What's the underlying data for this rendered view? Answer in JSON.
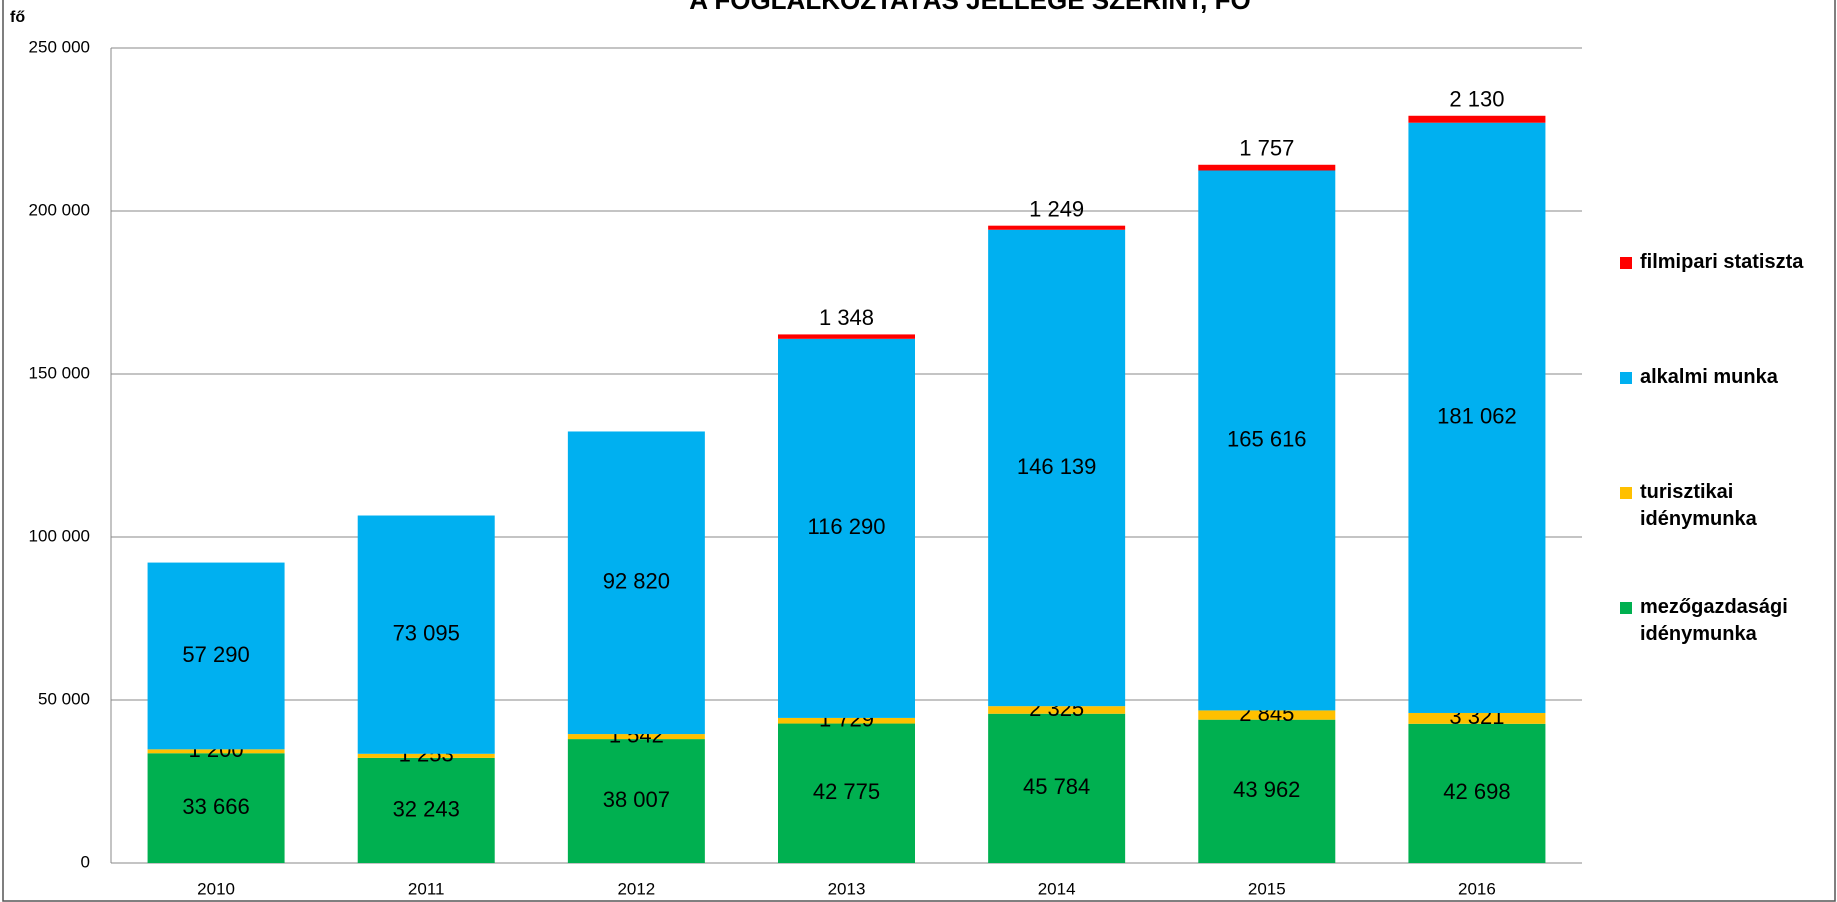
{
  "chart_data": {
    "type": "stacked_bar",
    "title": "A FOGLALKOZTATÁS JELLEGE SZERINT, FŐ",
    "y_label": "fő",
    "categories": [
      "2010",
      "2011",
      "2012",
      "2013",
      "2014",
      "2015",
      "2016"
    ],
    "ylim": [
      0,
      250000
    ],
    "yticks": [
      0,
      {
        "value": 50000,
        "label": "50 000"
      },
      {
        "value": 100000,
        "label": "100 000"
      },
      {
        "value": 150000,
        "label": "150 000"
      },
      {
        "value": 200000,
        "label": "200 000"
      },
      {
        "value": 250000,
        "label": "250 000"
      }
    ],
    "grid": true,
    "legend": "right",
    "series": [
      {
        "name": "mezőgazdasági idénymunka",
        "color": "#00b050",
        "values": [
          33666,
          32243,
          38007,
          42775,
          45784,
          43962,
          42698
        ],
        "value_labels": [
          "33 666",
          "32 243",
          "38 007",
          "42 775",
          "45 784",
          "43 962",
          "42 698"
        ]
      },
      {
        "name": "turisztikai idénymunka",
        "color": "#ffc000",
        "values": [
          1200,
          1253,
          1542,
          1729,
          2325,
          2845,
          3321
        ],
        "value_labels": [
          "1 200",
          "1 253",
          "1 542",
          "1 729",
          "2 325",
          "2 845",
          "3 321"
        ]
      },
      {
        "name": "alkalmi munka",
        "color": "#00b0f0",
        "values": [
          57290,
          73095,
          92820,
          116290,
          146139,
          165616,
          181062
        ],
        "value_labels": [
          "57 290",
          "73 095",
          "92 820",
          "116 290",
          "146 139",
          "165 616",
          "181 062"
        ]
      },
      {
        "name": "filmipari statiszta",
        "color": "#ff0000",
        "values": [
          null,
          null,
          null,
          1348,
          1249,
          1757,
          2130
        ],
        "value_labels": [
          null,
          null,
          null,
          "1 348",
          "1 249",
          "1 757",
          "2 130"
        ]
      }
    ]
  }
}
